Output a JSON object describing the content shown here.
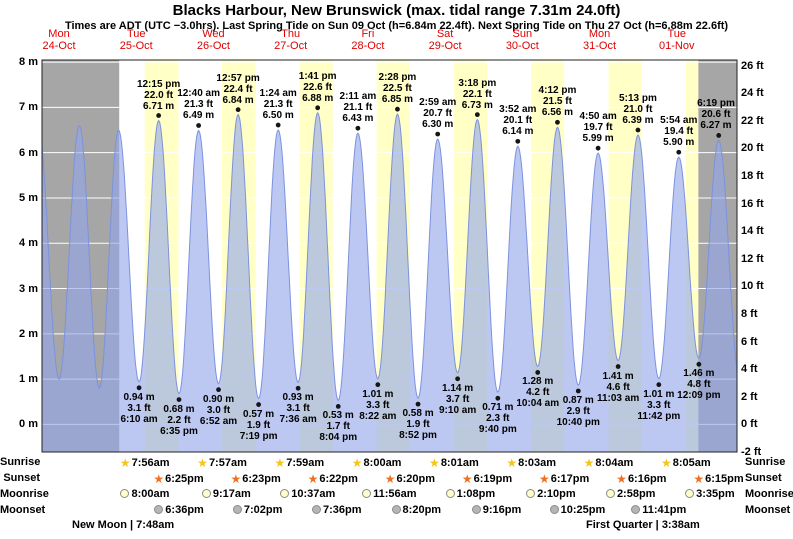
{
  "header": {
    "title": "Blacks Harbour, New Brunswick (max. tidal range 7.31m 24.0ft)",
    "subtitle": "Times are ADT (UTC −3.0hrs). Last Spring Tide on Sun 09 Oct (h=6.84m 22.4ft). Next Spring Tide on Thu 27 Oct (h=6.88m 22.6ft)"
  },
  "days": [
    {
      "weekday": "Mon",
      "date": "24-Oct"
    },
    {
      "weekday": "Tue",
      "date": "25-Oct"
    },
    {
      "weekday": "Wed",
      "date": "26-Oct"
    },
    {
      "weekday": "Thu",
      "date": "27-Oct"
    },
    {
      "weekday": "Fri",
      "date": "28-Oct"
    },
    {
      "weekday": "Sat",
      "date": "29-Oct"
    },
    {
      "weekday": "Sun",
      "date": "30-Oct"
    },
    {
      "weekday": "Mon",
      "date": "31-Oct"
    },
    {
      "weekday": "Tue",
      "date": "01-Nov"
    }
  ],
  "colors": {
    "day_band": "#ffffc6",
    "night_band": "#ffffff",
    "past_future_band": "#a6a6a6",
    "tide_fill": "#93a7ea",
    "tide_stroke": "#7c92dd",
    "grid_line": "#ffffff",
    "plot_border": "#222222",
    "day_label_red": "#e00000",
    "sunrise_star": "#f5c518",
    "sunset_star": "#f07020",
    "moonrise_disc": "#ffffcc",
    "moonset_disc": "#b5b5b5",
    "dot": "#151515"
  },
  "chart_data": {
    "type": "area",
    "x_axis": {
      "days": 9,
      "first_day": "Mon 24-Oct",
      "last_day": "Tue 01-Nov"
    },
    "y_axis_left": {
      "unit": "m",
      "ticks": [
        8,
        7,
        6,
        5,
        4,
        3,
        2,
        1,
        0
      ]
    },
    "y_axis_right": {
      "unit": "ft",
      "ticks": [
        26,
        24,
        22,
        20,
        18,
        16,
        14,
        12,
        10,
        8,
        6,
        4,
        2,
        0,
        -2
      ]
    },
    "ylim_ft": [
      -2,
      26.4
    ],
    "past_until_hour": 24,
    "future_from_hour": 204,
    "extremes": [
      {
        "th": -1.2,
        "m": 6.6,
        "type": "high"
      },
      {
        "th": 5.3,
        "m": 1.0,
        "type": "low"
      },
      {
        "th": 11.6,
        "m": 6.6,
        "type": "high"
      },
      {
        "th": 17.8,
        "m": 0.8,
        "type": "low"
      },
      {
        "th": 23.8,
        "m": 6.5,
        "type": "high"
      },
      {
        "th": 30.17,
        "m": 0.94,
        "type": "low",
        "label": [
          "0.94 m",
          "3.1 ft",
          "6:10 am"
        ]
      },
      {
        "th": 36.25,
        "m": 6.71,
        "type": "high",
        "label": [
          "12:15 pm",
          "22.0 ft",
          "6.71 m"
        ]
      },
      {
        "th": 42.58,
        "m": 0.68,
        "type": "low",
        "label": [
          "0.68 m",
          "2.2 ft",
          "6:35 pm"
        ]
      },
      {
        "th": 48.67,
        "m": 6.49,
        "type": "high",
        "label": [
          "12:40 am",
          "21.3 ft",
          "6.49 m"
        ]
      },
      {
        "th": 54.87,
        "m": 0.9,
        "type": "low",
        "label": [
          "0.90 m",
          "3.0 ft",
          "6:52 am"
        ]
      },
      {
        "th": 60.95,
        "m": 6.84,
        "type": "high",
        "label": [
          "12:57 pm",
          "22.4 ft",
          "6.84 m"
        ]
      },
      {
        "th": 67.32,
        "m": 0.57,
        "type": "low",
        "label": [
          "0.57 m",
          "1.9 ft",
          "7:19 pm"
        ]
      },
      {
        "th": 73.4,
        "m": 6.5,
        "type": "high",
        "label": [
          "1:24 am",
          "21.3 ft",
          "6.50 m"
        ]
      },
      {
        "th": 79.6,
        "m": 0.93,
        "type": "low",
        "label": [
          "0.93 m",
          "3.1 ft",
          "7:36 am"
        ]
      },
      {
        "th": 85.68,
        "m": 6.88,
        "type": "high",
        "label": [
          "1:41 pm",
          "22.6 ft",
          "6.88 m"
        ]
      },
      {
        "th": 92.07,
        "m": 0.53,
        "type": "low",
        "label": [
          "0.53 m",
          "1.7 ft",
          "8:04 pm"
        ]
      },
      {
        "th": 98.18,
        "m": 6.43,
        "type": "high",
        "label": [
          "2:11 am",
          "21.1 ft",
          "6.43 m"
        ]
      },
      {
        "th": 104.37,
        "m": 1.01,
        "type": "low",
        "label": [
          "1.01 m",
          "3.3 ft",
          "8:22 am"
        ]
      },
      {
        "th": 110.47,
        "m": 6.85,
        "type": "high",
        "label": [
          "2:28 pm",
          "22.5 ft",
          "6.85 m"
        ]
      },
      {
        "th": 116.87,
        "m": 0.58,
        "type": "low",
        "label": [
          "0.58 m",
          "1.9 ft",
          "8:52 pm"
        ]
      },
      {
        "th": 122.98,
        "m": 6.3,
        "type": "high",
        "label": [
          "2:59 am",
          "20.7 ft",
          "6.30 m"
        ]
      },
      {
        "th": 129.17,
        "m": 1.14,
        "type": "low",
        "label": [
          "1.14 m",
          "3.7 ft",
          "9:10 am"
        ]
      },
      {
        "th": 135.3,
        "m": 6.73,
        "type": "high",
        "label": [
          "3:18 pm",
          "22.1 ft",
          "6.73 m"
        ]
      },
      {
        "th": 141.67,
        "m": 0.71,
        "type": "low",
        "label": [
          "0.71 m",
          "2.3 ft",
          "9:40 pm"
        ]
      },
      {
        "th": 147.87,
        "m": 6.14,
        "type": "high",
        "label": [
          "3:52 am",
          "20.1 ft",
          "6.14 m"
        ]
      },
      {
        "th": 154.07,
        "m": 1.28,
        "type": "low",
        "label": [
          "1.28 m",
          "4.2 ft",
          "10:04 am"
        ]
      },
      {
        "th": 160.2,
        "m": 6.56,
        "type": "high",
        "label": [
          "4:12 pm",
          "21.5 ft",
          "6.56 m"
        ]
      },
      {
        "th": 166.67,
        "m": 0.87,
        "type": "low",
        "label": [
          "0.87 m",
          "2.9 ft",
          "10:40 pm"
        ]
      },
      {
        "th": 172.83,
        "m": 5.99,
        "type": "high",
        "label": [
          "4:50 am",
          "19.7 ft",
          "5.99 m"
        ]
      },
      {
        "th": 179.05,
        "m": 1.41,
        "type": "low",
        "label": [
          "1.41 m",
          "4.6 ft",
          "11:03 am"
        ]
      },
      {
        "th": 185.22,
        "m": 6.39,
        "type": "high",
        "label": [
          "5:13 pm",
          "21.0 ft",
          "6.39 m"
        ]
      },
      {
        "th": 191.7,
        "m": 1.01,
        "type": "low",
        "label": [
          "1.01 m",
          "3.3 ft",
          "11:42 pm"
        ]
      },
      {
        "th": 197.9,
        "m": 5.9,
        "type": "high",
        "label": [
          "5:54 am",
          "19.4 ft",
          "5.90 m"
        ]
      },
      {
        "th": 204.15,
        "m": 1.46,
        "type": "low",
        "label": [
          "1.46 m",
          "4.8 ft",
          "12:09 pm"
        ]
      },
      {
        "th": 210.32,
        "m": 6.27,
        "type": "high",
        "label": [
          "6:19 pm",
          "20.6 ft",
          "6.27 m"
        ]
      },
      {
        "th": 216.8,
        "m": 1.0,
        "type": "low"
      }
    ]
  },
  "sun_moon": {
    "row_labels": [
      "Sunrise",
      "Sunset",
      "Moonrise",
      "Moonset"
    ],
    "sunrise": {
      "start_day": 1,
      "times": [
        "7:56am",
        "7:57am",
        "7:59am",
        "8:00am",
        "8:01am",
        "8:03am",
        "8:04am",
        "8:05am"
      ]
    },
    "sunset": {
      "start_day": 1,
      "times": [
        "6:25pm",
        "6:23pm",
        "6:22pm",
        "6:20pm",
        "6:19pm",
        "6:17pm",
        "6:16pm",
        "6:15pm"
      ]
    },
    "moonrise": {
      "start_day": 1,
      "times": [
        "8:00am",
        "9:17am",
        "10:37am",
        "11:56am",
        "1:08pm",
        "2:10pm",
        "2:58pm",
        "3:35pm"
      ]
    },
    "moonset": {
      "start_day": 1,
      "times": [
        "6:36pm",
        "7:02pm",
        "7:36pm",
        "8:20pm",
        "9:16pm",
        "10:25pm",
        "11:41pm"
      ]
    }
  },
  "moon_phases": {
    "new_moon": "New Moon | 7:48am",
    "first_quarter": "First Quarter | 3:38am"
  }
}
